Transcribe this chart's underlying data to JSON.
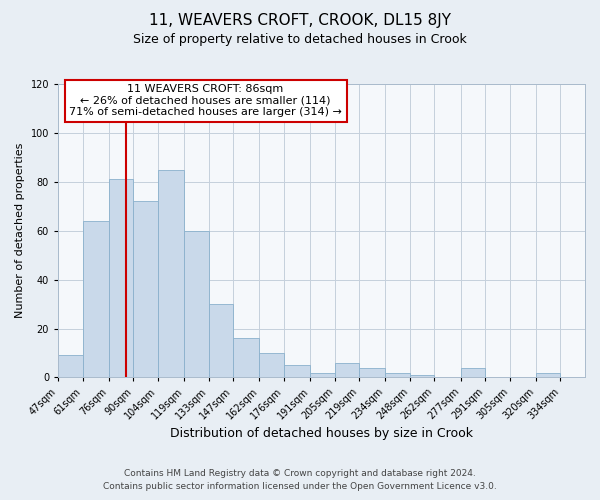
{
  "title": "11, WEAVERS CROFT, CROOK, DL15 8JY",
  "subtitle": "Size of property relative to detached houses in Crook",
  "xlabel": "Distribution of detached houses by size in Crook",
  "ylabel": "Number of detached properties",
  "bar_labels": [
    "47sqm",
    "61sqm",
    "76sqm",
    "90sqm",
    "104sqm",
    "119sqm",
    "133sqm",
    "147sqm",
    "162sqm",
    "176sqm",
    "191sqm",
    "205sqm",
    "219sqm",
    "234sqm",
    "248sqm",
    "262sqm",
    "277sqm",
    "291sqm",
    "305sqm",
    "320sqm",
    "334sqm"
  ],
  "bar_values": [
    9,
    64,
    81,
    72,
    85,
    60,
    30,
    16,
    10,
    5,
    2,
    6,
    4,
    2,
    1,
    0,
    4,
    0,
    0,
    2,
    0
  ],
  "bar_color": "#c9d9ea",
  "bar_edge_color": "#8ab0cc",
  "annotation_title": "11 WEAVERS CROFT: 86sqm",
  "annotation_line1": "← 26% of detached houses are smaller (114)",
  "annotation_line2": "71% of semi-detached houses are larger (314) →",
  "annotation_box_facecolor": "#ffffff",
  "annotation_box_edgecolor": "#cc0000",
  "ylim": [
    0,
    120
  ],
  "yticks": [
    0,
    20,
    40,
    60,
    80,
    100,
    120
  ],
  "bin_edges": [
    47,
    61,
    76,
    90,
    104,
    119,
    133,
    147,
    162,
    176,
    191,
    205,
    219,
    234,
    248,
    262,
    277,
    291,
    305,
    320,
    334,
    348
  ],
  "footer_line1": "Contains HM Land Registry data © Crown copyright and database right 2024.",
  "footer_line2": "Contains public sector information licensed under the Open Government Licence v3.0.",
  "background_color": "#e8eef4",
  "plot_bg_color": "#f5f8fb",
  "grid_color": "#c5d0dc",
  "vline_color": "#cc0000",
  "property_sqm": 86,
  "title_fontsize": 11,
  "subtitle_fontsize": 9,
  "xlabel_fontsize": 9,
  "ylabel_fontsize": 8,
  "tick_fontsize": 7,
  "annotation_fontsize": 8,
  "footer_fontsize": 6.5
}
